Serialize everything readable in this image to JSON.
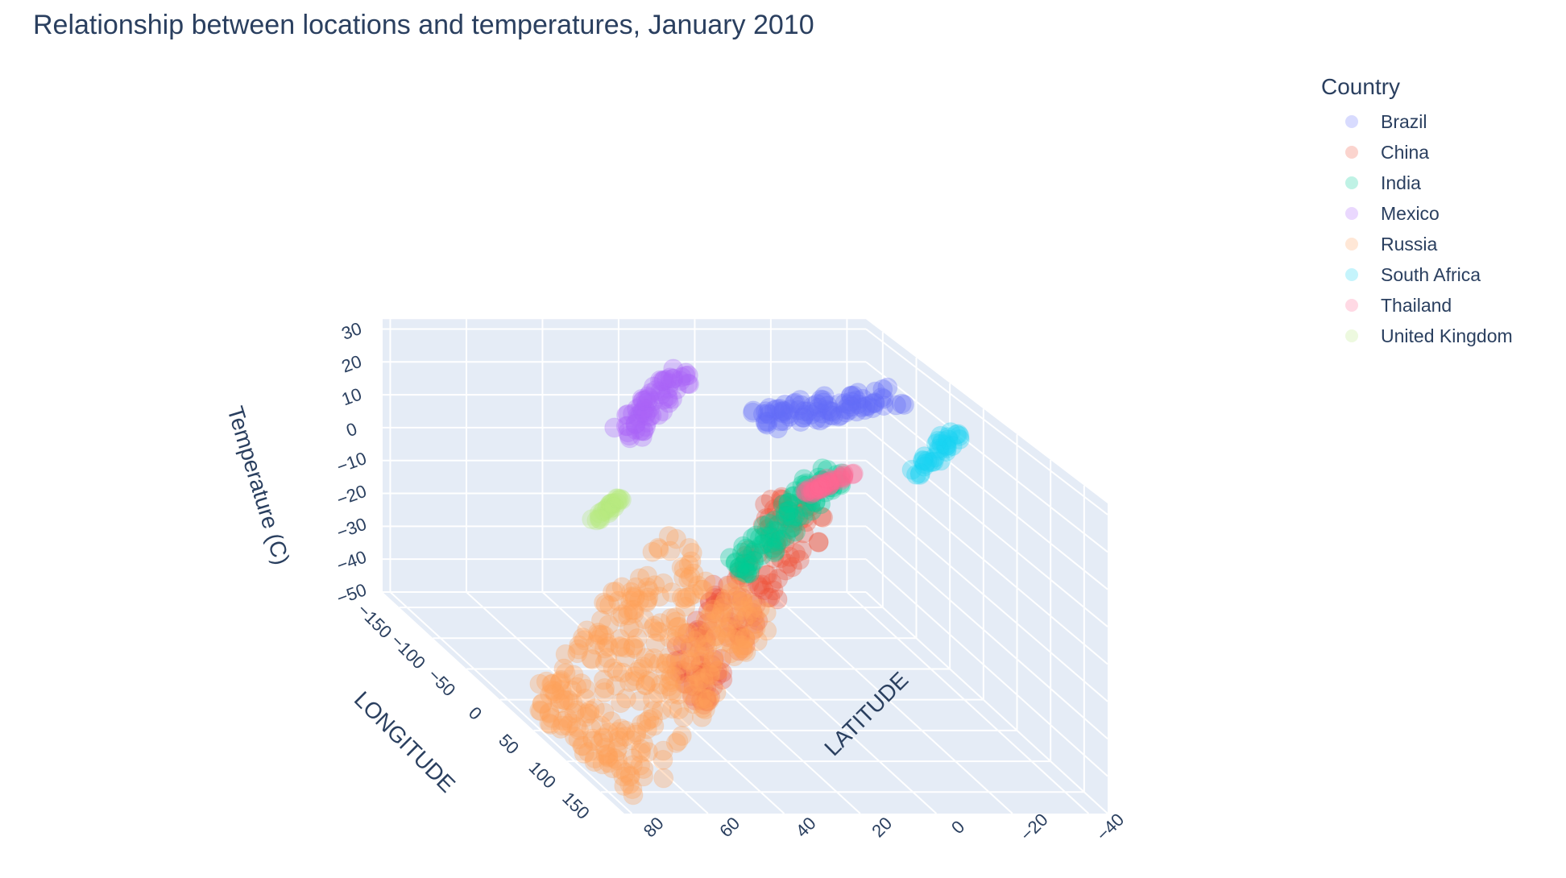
{
  "chart_data": {
    "type": "scatter",
    "subtype": "scatter3d",
    "title": "Relationship between locations and temperatures, January 2010",
    "axes": {
      "x": {
        "label": "LATITUDE",
        "ticks": [
          -40,
          -20,
          0,
          20,
          40,
          60,
          80
        ],
        "range": [
          -45,
          82
        ]
      },
      "y": {
        "label": "LONGITUDE",
        "ticks": [
          -150,
          -100,
          -50,
          0,
          50,
          100,
          150
        ],
        "range": [
          -175,
          185
        ]
      },
      "z": {
        "label": "Temperature (C)",
        "ticks": [
          -50,
          -40,
          -30,
          -20,
          -10,
          0,
          10,
          20,
          30
        ],
        "range": [
          -50,
          33
        ]
      }
    },
    "legend": {
      "title": "Country",
      "placement": "top-right"
    },
    "series": [
      {
        "name": "Brazil",
        "color": "#636efa",
        "lat": [
          -32,
          5
        ],
        "lon": [
          -72,
          -35
        ],
        "temp": [
          22,
          29
        ],
        "n": 90
      },
      {
        "name": "China",
        "color": "#EF553B",
        "lat": [
          20,
          52
        ],
        "lon": [
          75,
          134
        ],
        "temp": [
          -30,
          22
        ],
        "n": 170
      },
      {
        "name": "India",
        "color": "#00cc96",
        "lat": [
          8,
          34
        ],
        "lon": [
          68,
          96
        ],
        "temp": [
          0,
          28
        ],
        "n": 90
      },
      {
        "name": "Mexico",
        "color": "#ab63fa",
        "lat": [
          15,
          32
        ],
        "lon": [
          -117,
          -87
        ],
        "temp": [
          10,
          28
        ],
        "n": 70
      },
      {
        "name": "Russia",
        "color": "#FFA15A",
        "lat": [
          42,
          78
        ],
        "lon": [
          20,
          180
        ],
        "temp": [
          -48,
          2
        ],
        "n": 360
      },
      {
        "name": "South Africa",
        "color": "#19d3f3",
        "lat": [
          -34,
          -22
        ],
        "lon": [
          17,
          32
        ],
        "temp": [
          18,
          30
        ],
        "n": 35
      },
      {
        "name": "Thailand",
        "color": "#FF6692",
        "lat": [
          6,
          20
        ],
        "lon": [
          98,
          105
        ],
        "temp": [
          24,
          30
        ],
        "n": 35
      },
      {
        "name": "United Kingdom",
        "color": "#B6E880",
        "lat": [
          50,
          58
        ],
        "lon": [
          -6,
          2
        ],
        "temp": [
          0,
          7
        ],
        "n": 25
      }
    ]
  }
}
